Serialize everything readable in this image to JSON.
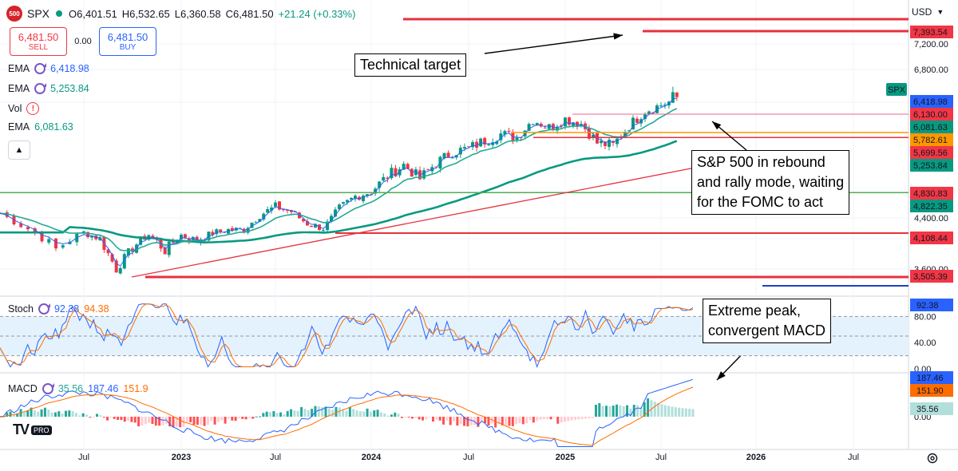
{
  "header": {
    "symbol_logo": "500",
    "symbol": "SPX",
    "open": "O6,401.51",
    "high": "H6,532.65",
    "low": "L6,360.58",
    "close": "C6,481.50",
    "change": "+21.24 (+0.33%)"
  },
  "trade": {
    "sell_price": "6,481.50",
    "sell_label": "SELL",
    "spread": "0.00",
    "buy_price": "6,481.50",
    "buy_label": "BUY"
  },
  "indicators": [
    {
      "name": "EMA",
      "value": "6,418.98",
      "color": "#2962ff"
    },
    {
      "name": "EMA",
      "value": "5,253.84",
      "color": "#089981"
    },
    {
      "name": "Vol",
      "value": "",
      "color": "#f23645"
    },
    {
      "name": "EMA",
      "value": "6,081.63",
      "color": "#089981"
    }
  ],
  "currency": "USD",
  "brand": {
    "mark": "TV",
    "pro": "PRO"
  },
  "colors": {
    "up": "#089981",
    "down": "#f23645",
    "ema_fast": "#2962ff",
    "ema_mid": "#22ab94",
    "ema_slow": "#089981"
  },
  "chart_data": [
    {
      "type": "candlestick",
      "pane": "price",
      "symbol": "SPX",
      "x_ticks": [
        "Jul",
        "2023",
        "Jul",
        "2024",
        "Jul",
        "2025",
        "Jul",
        "2026",
        "Jul"
      ],
      "y_ticks": [
        7200,
        6800,
        6400,
        4400,
        4000,
        3600
      ],
      "ylim": [
        3330,
        7650
      ],
      "close_series_approx": {
        "dates": [
          "2022-04",
          "2022-05",
          "2022-06",
          "2022-07",
          "2022-08",
          "2022-09",
          "2022-10",
          "2022-11",
          "2022-12",
          "2023-01",
          "2023-02",
          "2023-03",
          "2023-04",
          "2023-05",
          "2023-06",
          "2023-07",
          "2023-08",
          "2023-09",
          "2023-10",
          "2023-11",
          "2023-12",
          "2024-01",
          "2024-02",
          "2024-03",
          "2024-04",
          "2024-05",
          "2024-06",
          "2024-07",
          "2024-08",
          "2024-09",
          "2024-10",
          "2024-11",
          "2024-12",
          "2025-01",
          "2025-02",
          "2025-03",
          "2025-04",
          "2025-05",
          "2025-06",
          "2025-07",
          "2025-08"
        ],
        "values": [
          4480,
          4190,
          3860,
          4120,
          4000,
          3600,
          3880,
          4080,
          3840,
          4070,
          3970,
          4110,
          4170,
          4180,
          4450,
          4590,
          4510,
          4290,
          4200,
          4560,
          4770,
          4850,
          5080,
          5250,
          5040,
          5280,
          5460,
          5520,
          5650,
          5760,
          5700,
          6030,
          5880,
          6040,
          5950,
          5610,
          5570,
          5910,
          6200,
          6340,
          6470
        ]
      },
      "ema_values": {
        "ema_fast": 6418.98,
        "ema_slow": 5253.84,
        "ema_mid": 6081.63
      },
      "horizontal_levels": [
        7393.54,
        6130.0,
        5782.61,
        5699.56,
        4830.83,
        4108.44,
        3505.39
      ],
      "price_tags": [
        {
          "text": "USD",
          "kind": "currency"
        },
        {
          "text": "7,393.54",
          "color": "#f23645"
        },
        {
          "text": "SPX",
          "color": "#089981",
          "kind": "symbol"
        },
        {
          "text": "6,418.98",
          "color": "#2962ff"
        },
        {
          "text": "6,130.00",
          "color": "#f23645"
        },
        {
          "text": "6,081.63",
          "color": "#089981"
        },
        {
          "text": "5,782.61",
          "color": "#ff9800"
        },
        {
          "text": "5,699.56",
          "color": "#f23645"
        },
        {
          "text": "5,253.84",
          "color": "#089981"
        },
        {
          "text": "4,830.83",
          "color": "#f23645"
        },
        {
          "text": "4,822.35",
          "color": "#089981"
        },
        {
          "text": "4,108.44",
          "color": "#f23645"
        },
        {
          "text": "3,505.39",
          "color": "#f23645"
        }
      ],
      "annotations": [
        {
          "text": "Technical target"
        },
        {
          "text": "S&P 500 in rebound and rally mode, waiting for the FOMC to act",
          "lines": [
            "S&P 500 in rebound",
            "and rally mode, waiting",
            "for the FOMC to act"
          ]
        }
      ]
    },
    {
      "type": "line",
      "pane": "stochastic",
      "name": "Stoch",
      "k": 92.38,
      "d": 94.38,
      "y_ticks": [
        80.0,
        40.0,
        0.0
      ],
      "ylim": [
        0,
        100
      ],
      "band": [
        20,
        80
      ],
      "last_tag": "92.38",
      "annotation": {
        "text": "Extreme peak, convergent MACD",
        "lines": [
          "Extreme peak,",
          "convergent MACD"
        ]
      }
    },
    {
      "type": "bar",
      "pane": "macd",
      "name": "MACD",
      "histogram": 35.56,
      "macd": 187.46,
      "signal": 151.9,
      "y_ticks": [
        "187.46",
        "0.00"
      ],
      "tags": [
        {
          "text": "187.46",
          "color": "#2962ff"
        },
        {
          "text": "151.90",
          "color": "#ff6d00"
        },
        {
          "text": "35.56",
          "color": "#b2dfdb"
        }
      ]
    }
  ]
}
